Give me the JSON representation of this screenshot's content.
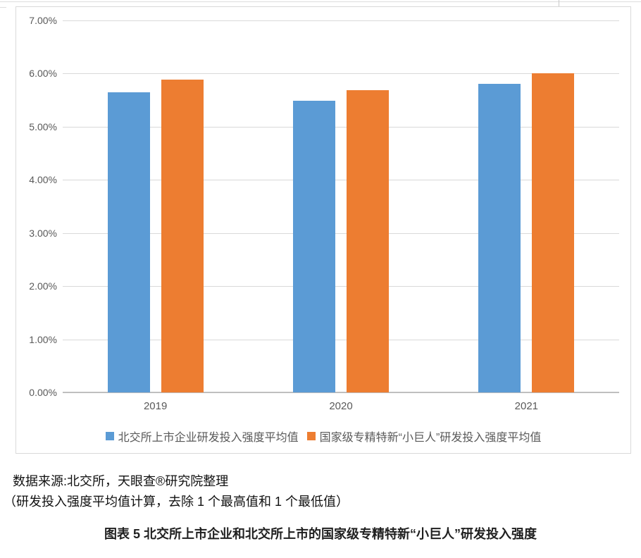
{
  "chart_data": {
    "type": "bar",
    "title": "",
    "xlabel": "",
    "ylabel": "",
    "categories": [
      "2019",
      "2020",
      "2021"
    ],
    "series": [
      {
        "name": "北交所上市企业研发投入强度平均值",
        "color": "#5B9BD5",
        "values": [
          5.65,
          5.49,
          5.81
        ]
      },
      {
        "name": "国家级专精特新“小巨人”研发投入强度平均值",
        "color": "#ED7D31",
        "values": [
          5.88,
          5.69,
          6.0
        ]
      }
    ],
    "value_unit": "%",
    "ylim": [
      0,
      7
    ],
    "ytick_labels": [
      "0.00%",
      "1.00%",
      "2.00%",
      "3.00%",
      "4.00%",
      "5.00%",
      "6.00%",
      "7.00%"
    ],
    "grid": true,
    "legend_position": "bottom",
    "colors": {
      "gridline": "#D9D9D9",
      "axis_line": "#BFBFBF",
      "tick_text": "#595959",
      "frame_border": "#D9D9D9"
    }
  },
  "footer": {
    "source_line1": "数据来源:北交所，天眼查®研究院整理",
    "source_line2": "（研发投入强度平均值计算，去除 1 个最高值和 1 个最低值）",
    "caption": "图表 5 北交所上市企业和北交所上市的国家级专精特新“小巨人”研发投入强度"
  }
}
